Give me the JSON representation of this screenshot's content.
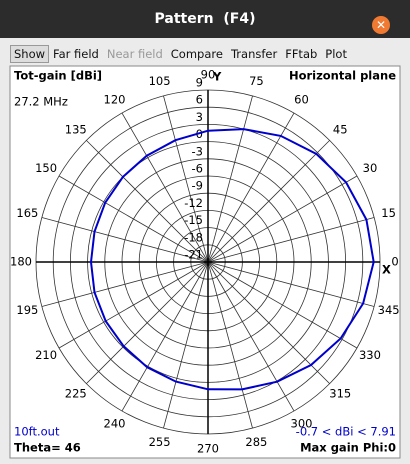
{
  "window": {
    "title": "Pattern  (F4)"
  },
  "menu": [
    "Show",
    "Far field",
    "Near field",
    "Compare",
    "Transfer",
    "FFtab",
    "Plot"
  ],
  "chart_data": {
    "type": "polar",
    "title": "Tot-gain [dBi]",
    "subtitle": "Horizontal plane",
    "frequency": "27.2 MHz",
    "file": "10ft.out",
    "theta": "Theta= 46",
    "range_label": "-0.7 < dBi < 7.91",
    "max_gain": "Max gain Phi:0",
    "x_axis_label": "X",
    "y_axis_label": "Y",
    "x": [
      0,
      15,
      30,
      45,
      60,
      75,
      90,
      105,
      120,
      135,
      150,
      165,
      180,
      195,
      210,
      225,
      240,
      255,
      270,
      285,
      300,
      315,
      330,
      345
    ],
    "series": [
      {
        "color": "#0000cc",
        "values": [
          7.9,
          7.6,
          6.8,
          5.7,
          4.4,
          3.0,
          1.9,
          1.0,
          0.4,
          0.0,
          -0.3,
          -0.5,
          -0.6,
          -0.5,
          -0.4,
          -0.2,
          0.2,
          0.6,
          1.2,
          2.0,
          3.1,
          4.4,
          5.7,
          7.0
        ]
      }
    ],
    "rlim": [
      -21,
      9
    ],
    "rticks": [
      9,
      6,
      3,
      0,
      -3,
      -6,
      -9,
      -12,
      -15,
      -18,
      -21
    ],
    "thetaticks": [
      0,
      15,
      30,
      45,
      60,
      75,
      90,
      105,
      120,
      135,
      150,
      165,
      180,
      195,
      210,
      225,
      240,
      255,
      270,
      285,
      300,
      315,
      330,
      345
    ]
  }
}
